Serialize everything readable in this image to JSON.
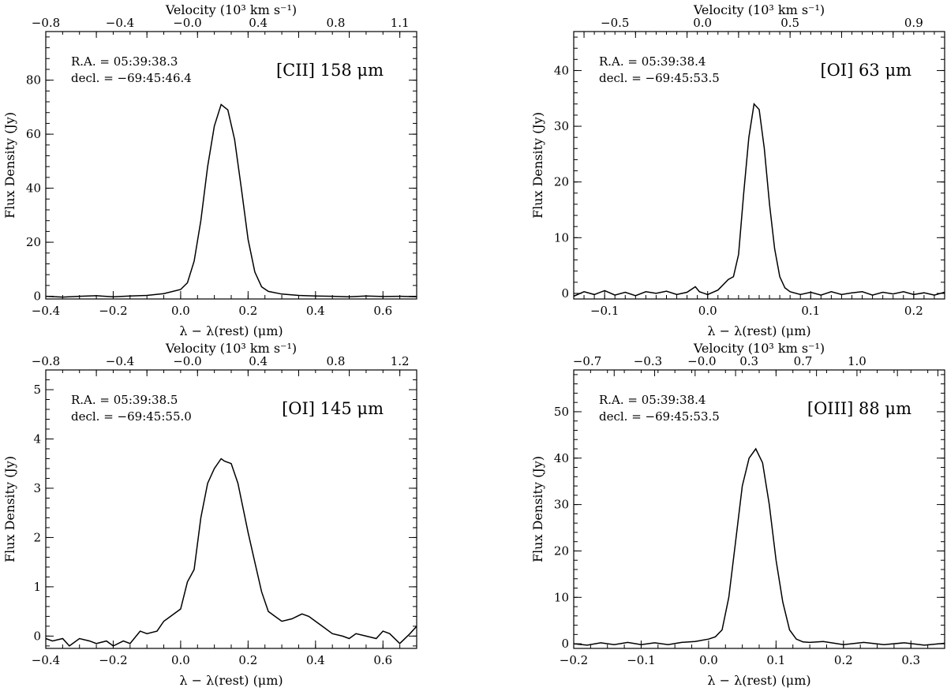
{
  "chart_data": [
    {
      "type": "line",
      "line_label": "[CII] 158 μm",
      "ra_text": "R.A. = 05:39:38.3",
      "dec_text": "decl. = −69:45:46.4",
      "xlabel": "λ − λ(rest) (μm)",
      "ylabel": "Flux Density (Jy)",
      "top_label": "Velocity (10³ km s⁻¹)",
      "xlim": [
        -0.4,
        0.7
      ],
      "ylim": [
        -1,
        98
      ],
      "xticks": [
        -0.4,
        -0.2,
        0.0,
        0.2,
        0.4,
        0.6
      ],
      "xtick_labels": [
        "−0.4",
        "−0.2",
        "0.0",
        "0.2",
        "0.4",
        "0.6"
      ],
      "yticks": [
        0,
        20,
        40,
        60,
        80
      ],
      "ytick_labels": [
        "0",
        "20",
        "40",
        "60",
        "80"
      ],
      "top_ticks": [
        -0.4,
        -0.25,
        -0.1,
        0.05,
        0.2,
        0.35,
        0.5,
        0.65
      ],
      "top_tick_labels": [
        "−0.8",
        "−0.4",
        "−0.0",
        "0.4",
        "0.8",
        "1.1"
      ],
      "top_tick_label_x": [
        -0.4,
        -0.18,
        0.02,
        0.23,
        0.46,
        0.65
      ],
      "x": [
        -0.4,
        -0.35,
        -0.3,
        -0.25,
        -0.2,
        -0.15,
        -0.1,
        -0.05,
        0.0,
        0.02,
        0.04,
        0.06,
        0.08,
        0.1,
        0.12,
        0.14,
        0.16,
        0.18,
        0.2,
        0.22,
        0.24,
        0.26,
        0.3,
        0.35,
        0.4,
        0.45,
        0.5,
        0.55,
        0.6,
        0.65,
        0.7
      ],
      "y": [
        0,
        -0.3,
        0,
        0.2,
        -0.2,
        0.1,
        0.3,
        1,
        2.5,
        5,
        13,
        28,
        48,
        63,
        71,
        69,
        58,
        40,
        21,
        9,
        3.5,
        1.8,
        0.8,
        0.3,
        0.1,
        0,
        -0.2,
        0.1,
        -0.1,
        0,
        -0.2
      ]
    },
    {
      "type": "line",
      "line_label": "[OI] 63 μm",
      "ra_text": "R.A. = 05:39:38.4",
      "dec_text": "decl. = −69:45:53.5",
      "xlabel": "λ − λ(rest) (μm)",
      "ylabel": "Flux Density (Jy)",
      "top_label": "Velocity (10³ km s⁻¹)",
      "xlim": [
        -0.13,
        0.23
      ],
      "ylim": [
        -1,
        47
      ],
      "xticks": [
        -0.1,
        0.0,
        0.1,
        0.2
      ],
      "xtick_labels": [
        "−0.1",
        "0.0",
        "0.1",
        "0.2"
      ],
      "yticks": [
        0,
        10,
        20,
        30,
        40
      ],
      "ytick_labels": [
        "0",
        "10",
        "20",
        "30",
        "40"
      ],
      "top_ticks": [
        -0.12,
        -0.07,
        -0.02,
        0.03,
        0.08,
        0.13,
        0.18
      ],
      "top_tick_labels": [
        "−0.5",
        "0.0",
        "0.5",
        "0.9"
      ],
      "top_tick_label_x": [
        -0.09,
        -0.005,
        0.08,
        0.2
      ],
      "x": [
        -0.13,
        -0.12,
        -0.11,
        -0.1,
        -0.09,
        -0.08,
        -0.07,
        -0.06,
        -0.05,
        -0.04,
        -0.03,
        -0.02,
        -0.012,
        -0.008,
        0.0,
        0.01,
        0.02,
        0.025,
        0.03,
        0.035,
        0.04,
        0.045,
        0.05,
        0.055,
        0.06,
        0.065,
        0.07,
        0.075,
        0.08,
        0.09,
        0.1,
        0.11,
        0.12,
        0.13,
        0.14,
        0.15,
        0.16,
        0.17,
        0.18,
        0.19,
        0.2,
        0.21,
        0.22,
        0.23
      ],
      "y": [
        -0.5,
        0.3,
        -0.2,
        0.5,
        -0.3,
        0.2,
        -0.4,
        0.3,
        0,
        0.4,
        -0.2,
        0.2,
        1.2,
        0.3,
        -0.2,
        0.6,
        2.5,
        3,
        7,
        18,
        28,
        34,
        33,
        26,
        16,
        8,
        3,
        1,
        0.3,
        -0.2,
        0.2,
        -0.3,
        0.3,
        -0.2,
        0.1,
        0.3,
        -0.3,
        0.2,
        -0.1,
        0.3,
        -0.2,
        0.1,
        -0.3,
        0.2
      ]
    },
    {
      "type": "line",
      "line_label": "[OI] 145 μm",
      "ra_text": "R.A. = 05:39:38.5",
      "dec_text": "decl. = −69:45:55.0",
      "xlabel": "λ − λ(rest) (μm)",
      "ylabel": "Flux Density (Jy)",
      "top_label": "Velocity (10³ km s⁻¹)",
      "xlim": [
        -0.4,
        0.7
      ],
      "ylim": [
        -0.25,
        5.4
      ],
      "xticks": [
        -0.4,
        -0.2,
        0.0,
        0.2,
        0.4,
        0.6
      ],
      "xtick_labels": [
        "−0.4",
        "−0.2",
        "0.0",
        "0.2",
        "0.4",
        "0.6"
      ],
      "yticks": [
        0,
        1,
        2,
        3,
        4,
        5
      ],
      "ytick_labels": [
        "0",
        "1",
        "2",
        "3",
        "4",
        "5"
      ],
      "top_ticks": [
        -0.4,
        -0.25,
        -0.1,
        0.05,
        0.2,
        0.35,
        0.5,
        0.65
      ],
      "top_tick_labels": [
        "−0.8",
        "−0.4",
        "−0.0",
        "0.4",
        "0.8",
        "1.2"
      ],
      "top_tick_label_x": [
        -0.4,
        -0.18,
        0.02,
        0.23,
        0.46,
        0.65
      ],
      "x": [
        -0.4,
        -0.38,
        -0.35,
        -0.33,
        -0.3,
        -0.27,
        -0.25,
        -0.22,
        -0.2,
        -0.17,
        -0.15,
        -0.12,
        -0.1,
        -0.07,
        -0.05,
        -0.03,
        0.0,
        0.02,
        0.04,
        0.06,
        0.08,
        0.1,
        0.12,
        0.13,
        0.15,
        0.17,
        0.2,
        0.22,
        0.24,
        0.26,
        0.28,
        0.3,
        0.33,
        0.36,
        0.38,
        0.4,
        0.42,
        0.45,
        0.48,
        0.5,
        0.52,
        0.55,
        0.58,
        0.6,
        0.62,
        0.65,
        0.68,
        0.7
      ],
      "y": [
        -0.05,
        -0.1,
        -0.05,
        -0.2,
        -0.05,
        -0.1,
        -0.15,
        -0.1,
        -0.2,
        -0.1,
        -0.15,
        0.1,
        0.05,
        0.1,
        0.3,
        0.4,
        0.55,
        1.1,
        1.35,
        2.4,
        3.1,
        3.4,
        3.6,
        3.55,
        3.5,
        3.1,
        2.1,
        1.5,
        0.9,
        0.5,
        0.4,
        0.3,
        0.35,
        0.45,
        0.4,
        0.3,
        0.2,
        0.05,
        0,
        -0.05,
        0.05,
        0,
        -0.05,
        0.1,
        0.05,
        -0.15,
        0.05,
        0.2
      ]
    },
    {
      "type": "line",
      "line_label": "[OIII] 88 μm",
      "ra_text": "R.A. = 05:39:38.4",
      "dec_text": "decl. = −69:45:53.5",
      "xlabel": "λ − λ(rest) (μm)",
      "ylabel": "Flux Density (Jy)",
      "top_label": "Velocity (10³ km s⁻¹)",
      "xlim": [
        -0.2,
        0.35
      ],
      "ylim": [
        -1,
        59
      ],
      "xticks": [
        -0.2,
        -0.1,
        0.0,
        0.1,
        0.2,
        0.3
      ],
      "xtick_labels": [
        "−0.2",
        "−0.1",
        "0.0",
        "0.1",
        "0.2",
        "0.3"
      ],
      "yticks": [
        0,
        10,
        20,
        30,
        40,
        50
      ],
      "ytick_labels": [
        "0",
        "10",
        "20",
        "30",
        "40",
        "50"
      ],
      "top_ticks": [
        -0.2,
        -0.14,
        -0.08,
        -0.02,
        0.04,
        0.1,
        0.16,
        0.22,
        0.28,
        0.34
      ],
      "top_tick_labels": [
        "−0.7",
        "−0.3",
        "−0.0",
        "0.3",
        "0.7",
        "1.0"
      ],
      "top_tick_label_x": [
        -0.18,
        -0.09,
        -0.01,
        0.06,
        0.14,
        0.22
      ],
      "x": [
        -0.2,
        -0.18,
        -0.16,
        -0.14,
        -0.12,
        -0.1,
        -0.08,
        -0.06,
        -0.04,
        -0.02,
        0.0,
        0.01,
        0.02,
        0.03,
        0.04,
        0.05,
        0.06,
        0.07,
        0.08,
        0.09,
        0.1,
        0.11,
        0.12,
        0.13,
        0.14,
        0.15,
        0.17,
        0.2,
        0.23,
        0.26,
        0.29,
        0.32,
        0.35
      ],
      "y": [
        0,
        -0.3,
        0.2,
        -0.2,
        0.3,
        -0.2,
        0.2,
        -0.2,
        0.3,
        0.5,
        1,
        1.5,
        3,
        10,
        22,
        34,
        40,
        42,
        39,
        30,
        18,
        9,
        3,
        1,
        0.4,
        0.3,
        0.5,
        -0.2,
        0.3,
        -0.2,
        0.2,
        -0.3,
        0.1
      ]
    }
  ]
}
